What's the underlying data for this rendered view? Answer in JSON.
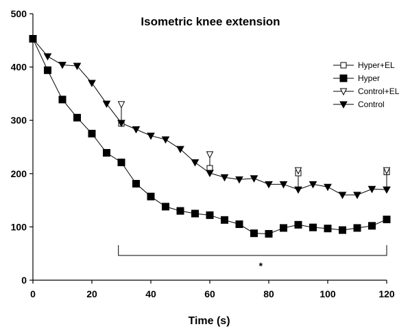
{
  "chart_data": {
    "type": "line",
    "title": "Isometric knee extension",
    "xlabel": "Time (s)",
    "ylabel": "",
    "xlim": [
      0,
      120
    ],
    "ylim": [
      0,
      500
    ],
    "xticks": [
      0,
      20,
      40,
      60,
      80,
      100,
      120
    ],
    "yticks": [
      0,
      100,
      200,
      300,
      400,
      500
    ],
    "grid": false,
    "legend_position": "top-right",
    "significance_marker": "*",
    "significance_range": [
      29,
      120
    ],
    "series": [
      {
        "name": "Hyper+EL",
        "marker": "open-square",
        "x": [
          30,
          60,
          90,
          120
        ],
        "y": [
          294,
          210,
          201,
          203
        ]
      },
      {
        "name": "Hyper",
        "marker": "filled-square",
        "x": [
          0,
          5,
          10,
          15,
          20,
          25,
          30,
          35,
          40,
          45,
          50,
          55,
          60,
          65,
          70,
          75,
          80,
          85,
          90,
          95,
          100,
          105,
          110,
          115,
          120
        ],
        "y": [
          453,
          394,
          339,
          305,
          275,
          239,
          221,
          181,
          157,
          138,
          130,
          125,
          122,
          113,
          105,
          88,
          87,
          98,
          104,
          99,
          97,
          94,
          98,
          102,
          114
        ]
      },
      {
        "name": "Control+EL",
        "marker": "open-triangle-down",
        "x": [
          30,
          60,
          90,
          120
        ],
        "y": [
          330,
          236,
          206,
          206
        ]
      },
      {
        "name": "Control",
        "marker": "filled-triangle-down",
        "x": [
          0,
          5,
          10,
          15,
          20,
          25,
          30,
          35,
          40,
          45,
          50,
          55,
          60,
          65,
          70,
          75,
          80,
          85,
          90,
          95,
          100,
          105,
          110,
          115,
          120
        ],
        "y": [
          453,
          420,
          404,
          402,
          370,
          331,
          295,
          283,
          271,
          264,
          246,
          221,
          201,
          193,
          189,
          191,
          180,
          180,
          170,
          180,
          175,
          160,
          160,
          171,
          170
        ]
      }
    ]
  }
}
